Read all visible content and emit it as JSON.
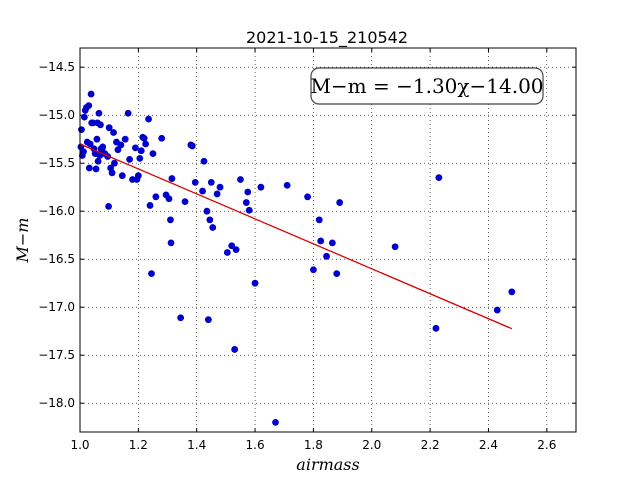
{
  "chart_data": {
    "type": "scatter",
    "title": "2021-10-15_210542",
    "xlabel": "airmass",
    "ylabel": "M−m",
    "xlim": [
      1.0,
      2.7
    ],
    "ylim": [
      -18.3,
      -14.3
    ],
    "y_inverted": true,
    "x_ticks": [
      1.0,
      1.2,
      1.4,
      1.6,
      1.8,
      2.0,
      2.2,
      2.4,
      2.6
    ],
    "x_tick_labels": [
      "1.0",
      "1.2",
      "1.4",
      "1.6",
      "1.8",
      "2.0",
      "2.2",
      "2.4",
      "2.6"
    ],
    "y_ticks": [
      -14.5,
      -15.0,
      -15.5,
      -16.0,
      -16.5,
      -17.0,
      -17.5,
      -18.0
    ],
    "y_tick_labels": [
      "−14.5",
      "−15.0",
      "−15.5",
      "−16.0",
      "−16.5",
      "−17.0",
      "−17.5",
      "−18.0"
    ],
    "grid": true,
    "fit_label": "M−m = −1.30χ−14.00",
    "fit_line": {
      "slope": -1.3,
      "intercept": -14.0,
      "x_range": [
        1.0,
        2.48
      ]
    },
    "colors": {
      "points": "#0000cc",
      "fit": "#dd0000",
      "label_box": "#444444"
    },
    "points": [
      [
        1.003,
        -15.33
      ],
      [
        1.005,
        -15.15
      ],
      [
        1.008,
        -15.42
      ],
      [
        1.012,
        -15.38
      ],
      [
        1.015,
        -15.02
      ],
      [
        1.018,
        -14.95
      ],
      [
        1.022,
        -14.92
      ],
      [
        1.025,
        -15.28
      ],
      [
        1.03,
        -14.9
      ],
      [
        1.032,
        -15.55
      ],
      [
        1.035,
        -15.3
      ],
      [
        1.038,
        -14.78
      ],
      [
        1.04,
        -15.08
      ],
      [
        1.045,
        -15.08
      ],
      [
        1.048,
        -15.35
      ],
      [
        1.052,
        -15.4
      ],
      [
        1.055,
        -15.56
      ],
      [
        1.058,
        -15.25
      ],
      [
        1.06,
        -15.08
      ],
      [
        1.062,
        -15.48
      ],
      [
        1.065,
        -14.98
      ],
      [
        1.068,
        -15.42
      ],
      [
        1.07,
        -15.1
      ],
      [
        1.072,
        -15.35
      ],
      [
        1.075,
        -15.36
      ],
      [
        1.078,
        -15.33
      ],
      [
        1.085,
        -15.4
      ],
      [
        1.095,
        -15.43
      ],
      [
        1.098,
        -15.95
      ],
      [
        1.1,
        -15.13
      ],
      [
        1.105,
        -15.55
      ],
      [
        1.11,
        -15.6
      ],
      [
        1.115,
        -15.18
      ],
      [
        1.118,
        -15.5
      ],
      [
        1.125,
        -15.28
      ],
      [
        1.13,
        -15.36
      ],
      [
        1.14,
        -15.31
      ],
      [
        1.145,
        -15.63
      ],
      [
        1.155,
        -15.25
      ],
      [
        1.165,
        -14.98
      ],
      [
        1.17,
        -15.46
      ],
      [
        1.18,
        -15.67
      ],
      [
        1.19,
        -15.34
      ],
      [
        1.195,
        -15.67
      ],
      [
        1.2,
        -15.63
      ],
      [
        1.205,
        -15.45
      ],
      [
        1.21,
        -15.37
      ],
      [
        1.215,
        -15.23
      ],
      [
        1.22,
        -15.24
      ],
      [
        1.225,
        -15.3
      ],
      [
        1.235,
        -15.04
      ],
      [
        1.24,
        -15.94
      ],
      [
        1.245,
        -16.65
      ],
      [
        1.25,
        -15.4
      ],
      [
        1.26,
        -15.85
      ],
      [
        1.28,
        -15.24
      ],
      [
        1.295,
        -15.83
      ],
      [
        1.305,
        -15.87
      ],
      [
        1.31,
        -16.09
      ],
      [
        1.312,
        -16.33
      ],
      [
        1.315,
        -15.66
      ],
      [
        1.345,
        -17.11
      ],
      [
        1.36,
        -15.9
      ],
      [
        1.38,
        -15.31
      ],
      [
        1.385,
        -15.32
      ],
      [
        1.395,
        -15.7
      ],
      [
        1.42,
        -15.79
      ],
      [
        1.425,
        -15.48
      ],
      [
        1.435,
        -16.0
      ],
      [
        1.44,
        -17.13
      ],
      [
        1.445,
        -16.09
      ],
      [
        1.45,
        -15.7
      ],
      [
        1.455,
        -16.17
      ],
      [
        1.47,
        -15.82
      ],
      [
        1.48,
        -15.75
      ],
      [
        1.505,
        -16.43
      ],
      [
        1.52,
        -16.36
      ],
      [
        1.53,
        -17.44
      ],
      [
        1.535,
        -16.4
      ],
      [
        1.55,
        -15.67
      ],
      [
        1.57,
        -15.91
      ],
      [
        1.575,
        -15.8
      ],
      [
        1.58,
        -15.99
      ],
      [
        1.6,
        -16.75
      ],
      [
        1.62,
        -15.75
      ],
      [
        1.67,
        -18.2
      ],
      [
        1.71,
        -15.73
      ],
      [
        1.78,
        -15.85
      ],
      [
        1.8,
        -16.61
      ],
      [
        1.82,
        -16.09
      ],
      [
        1.825,
        -16.31
      ],
      [
        1.845,
        -16.47
      ],
      [
        1.865,
        -16.33
      ],
      [
        1.88,
        -16.65
      ],
      [
        1.89,
        -15.91
      ],
      [
        2.08,
        -16.37
      ],
      [
        2.22,
        -17.22
      ],
      [
        2.23,
        -15.65
      ],
      [
        2.43,
        -17.03
      ],
      [
        2.48,
        -16.84
      ]
    ]
  }
}
